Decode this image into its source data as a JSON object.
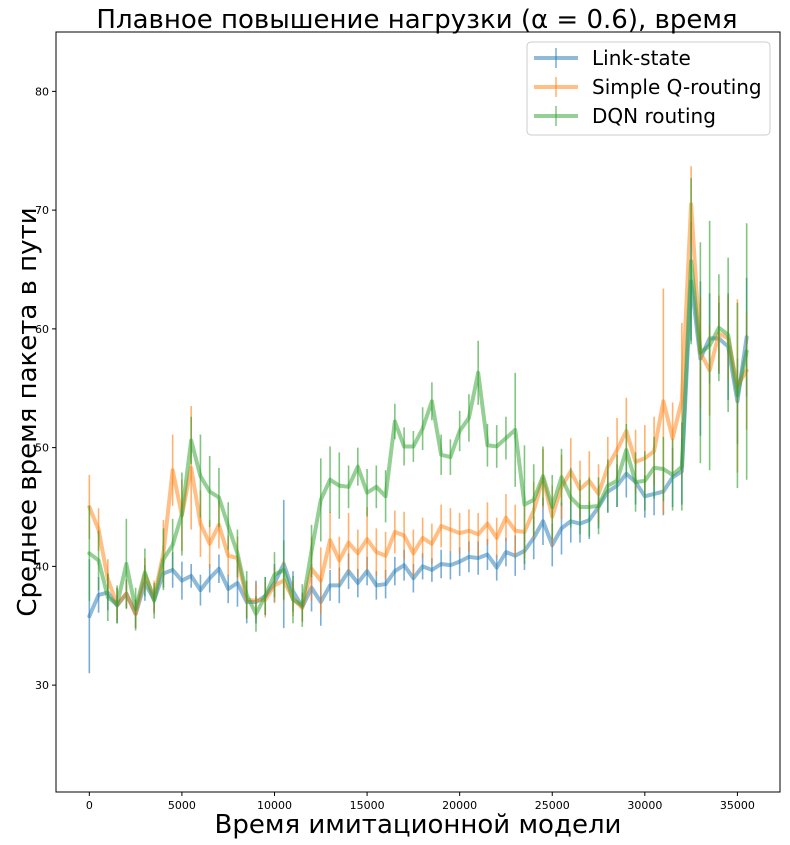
{
  "chart_data": {
    "type": "line",
    "title": "Плавное повышение нагрузки (α = 0.6), время",
    "xlabel": "Время имитационной модели",
    "ylabel": "Среднее время пакета в пути",
    "xlim": [
      -1800,
      37300
    ],
    "ylim": [
      21,
      85
    ],
    "xticks": [
      0,
      5000,
      10000,
      15000,
      20000,
      25000,
      30000,
      35000
    ],
    "yticks": [
      30,
      40,
      50,
      60,
      70,
      80
    ],
    "legend_position": "upper-right",
    "x": [
      0,
      500,
      1000,
      1500,
      2000,
      2500,
      3000,
      3500,
      4000,
      4500,
      5000,
      5500,
      6000,
      6500,
      7000,
      7500,
      8000,
      8500,
      9000,
      9500,
      10000,
      10500,
      11000,
      11500,
      12000,
      12500,
      13000,
      13500,
      14000,
      14500,
      15000,
      15500,
      16000,
      16500,
      17000,
      17500,
      18000,
      18500,
      19000,
      19500,
      20000,
      20500,
      21000,
      21500,
      22000,
      22500,
      23000,
      23500,
      24000,
      24500,
      25000,
      25500,
      26000,
      26500,
      27000,
      27500,
      28000,
      28500,
      29000,
      29500,
      30000,
      30500,
      31000,
      31500,
      32000,
      32500,
      33000,
      33500,
      34000,
      34500,
      35000,
      35500
    ],
    "series": [
      {
        "name": "Link-state",
        "color": "#1f77b4",
        "values": [
          35.8,
          37.6,
          37.8,
          36.7,
          37.7,
          36.0,
          38.6,
          37.2,
          39.4,
          39.7,
          38.8,
          39.2,
          38.0,
          39.0,
          39.8,
          38.1,
          38.6,
          37.0,
          37.0,
          37.5,
          38.6,
          40.2,
          37.9,
          36.6,
          38.2,
          37.0,
          38.4,
          38.4,
          39.6,
          38.6,
          39.6,
          38.4,
          38.5,
          39.6,
          40.1,
          39.0,
          40.0,
          39.7,
          40.2,
          40.1,
          40.4,
          40.8,
          40.7,
          41.0,
          39.9,
          41.2,
          40.9,
          41.3,
          42.4,
          43.8,
          41.8,
          43.2,
          43.8,
          43.6,
          43.9,
          45.0,
          46.3,
          46.8,
          47.8,
          47.1,
          45.9,
          46.1,
          46.3,
          47.5,
          48.0,
          64.0,
          57.5,
          59.2,
          59.2,
          58.5,
          53.9,
          59.3
        ],
        "errors": [
          4.8,
          1.5,
          1.5,
          1.5,
          1.2,
          1.2,
          1.5,
          1.0,
          1.2,
          1.5,
          1.6,
          1.0,
          1.3,
          1.2,
          1.2,
          1.2,
          2.0,
          1.8,
          1.8,
          1.6,
          1.6,
          5.4,
          1.7,
          1.2,
          2.0,
          2.0,
          1.3,
          1.5,
          1.5,
          1.2,
          1.2,
          1.2,
          1.2,
          1.2,
          1.3,
          1.2,
          1.1,
          1.0,
          1.2,
          1.2,
          1.2,
          1.3,
          1.4,
          1.3,
          1.1,
          1.2,
          1.7,
          1.6,
          1.8,
          2.0,
          1.8,
          2.2,
          1.8,
          1.6,
          1.6,
          1.8,
          1.8,
          1.8,
          2.0,
          1.9,
          1.8,
          1.8,
          2.0,
          2.5,
          2.8,
          5.0,
          6.5,
          3.8,
          3.0,
          4.5,
          3.6,
          5.0
        ]
      },
      {
        "name": "Simple Q-routing",
        "color": "#ff7f0e",
        "values": [
          45.0,
          43.1,
          38.9,
          36.8,
          37.7,
          36.0,
          39.3,
          37.4,
          41.1,
          48.1,
          44.3,
          48.3,
          43.6,
          41.9,
          43.5,
          40.9,
          40.7,
          37.2,
          37.1,
          37.2,
          38.4,
          38.8,
          37.3,
          36.5,
          39.8,
          38.8,
          42.2,
          40.5,
          42.0,
          41.1,
          42.3,
          41.2,
          40.9,
          42.9,
          42.6,
          41.1,
          42.4,
          41.9,
          43.4,
          43.1,
          42.8,
          43.0,
          42.7,
          43.6,
          42.4,
          44.1,
          43.0,
          42.9,
          44.7,
          47.4,
          44.2,
          46.7,
          48.0,
          46.5,
          47.2,
          46.1,
          48.4,
          49.8,
          51.4,
          48.8,
          49.1,
          49.7,
          53.9,
          50.8,
          54.0,
          70.5,
          58.0,
          56.5,
          59.6,
          59.2,
          55.2,
          56.5
        ],
        "errors": [
          2.7,
          1.8,
          1.7,
          1.4,
          1.2,
          1.2,
          1.4,
          1.4,
          2.8,
          3.0,
          3.0,
          5.2,
          2.8,
          2.0,
          2.0,
          1.7,
          1.8,
          1.5,
          1.5,
          1.5,
          1.5,
          1.7,
          1.5,
          1.2,
          2.7,
          2.8,
          2.4,
          2.0,
          2.5,
          2.0,
          2.7,
          2.0,
          2.0,
          1.8,
          2.0,
          2.0,
          1.7,
          1.7,
          1.8,
          1.8,
          1.7,
          1.8,
          1.8,
          1.8,
          1.7,
          2.0,
          2.2,
          2.2,
          2.4,
          2.5,
          2.6,
          2.7,
          2.8,
          2.4,
          2.5,
          2.5,
          2.5,
          2.7,
          2.8,
          2.7,
          2.8,
          2.9,
          9.5,
          3.0,
          6.5,
          3.2,
          4.7,
          3.8,
          3.2,
          3.6,
          7.3,
          5.0
        ]
      },
      {
        "name": "DQN routing",
        "color": "#2ca02c",
        "values": [
          41.1,
          40.5,
          37.4,
          36.8,
          40.2,
          36.4,
          39.5,
          37.1,
          40.6,
          41.8,
          44.4,
          50.6,
          47.6,
          46.3,
          45.8,
          43.4,
          41.1,
          37.6,
          36.0,
          37.5,
          39.3,
          39.7,
          37.2,
          36.7,
          41.3,
          45.6,
          47.3,
          46.8,
          46.7,
          48.4,
          46.2,
          46.7,
          45.9,
          52.2,
          50.1,
          50.1,
          51.6,
          53.9,
          49.4,
          49.2,
          51.4,
          52.5,
          56.3,
          50.2,
          50.1,
          50.8,
          51.5,
          45.2,
          45.6,
          47.6,
          45.0,
          47.5,
          45.8,
          45.0,
          45.0,
          45.1,
          46.8,
          47.2,
          49.8,
          47.1,
          47.2,
          48.3,
          48.2,
          47.7,
          48.4,
          65.7,
          58.0,
          58.6,
          60.1,
          59.5,
          54.4,
          58.1
        ],
        "errors": [
          4.0,
          2.5,
          2.0,
          1.6,
          3.8,
          1.8,
          2.0,
          1.5,
          2.6,
          2.2,
          3.5,
          2.0,
          3.5,
          3.0,
          2.5,
          2.0,
          2.0,
          2.0,
          1.5,
          1.6,
          1.9,
          2.5,
          2.0,
          1.8,
          2.2,
          3.5,
          2.8,
          2.8,
          1.8,
          1.6,
          2.0,
          1.8,
          2.2,
          1.5,
          1.6,
          1.3,
          1.8,
          1.6,
          1.7,
          1.5,
          1.7,
          2.0,
          2.7,
          1.8,
          1.8,
          1.8,
          4.8,
          5.0,
          3.0,
          2.5,
          2.7,
          2.4,
          2.5,
          2.3,
          2.5,
          2.4,
          2.2,
          2.2,
          2.2,
          2.5,
          2.5,
          2.6,
          2.7,
          3.0,
          3.7,
          7.0,
          9.3,
          10.5,
          4.5,
          6.5,
          7.8,
          10.8
        ]
      }
    ]
  }
}
